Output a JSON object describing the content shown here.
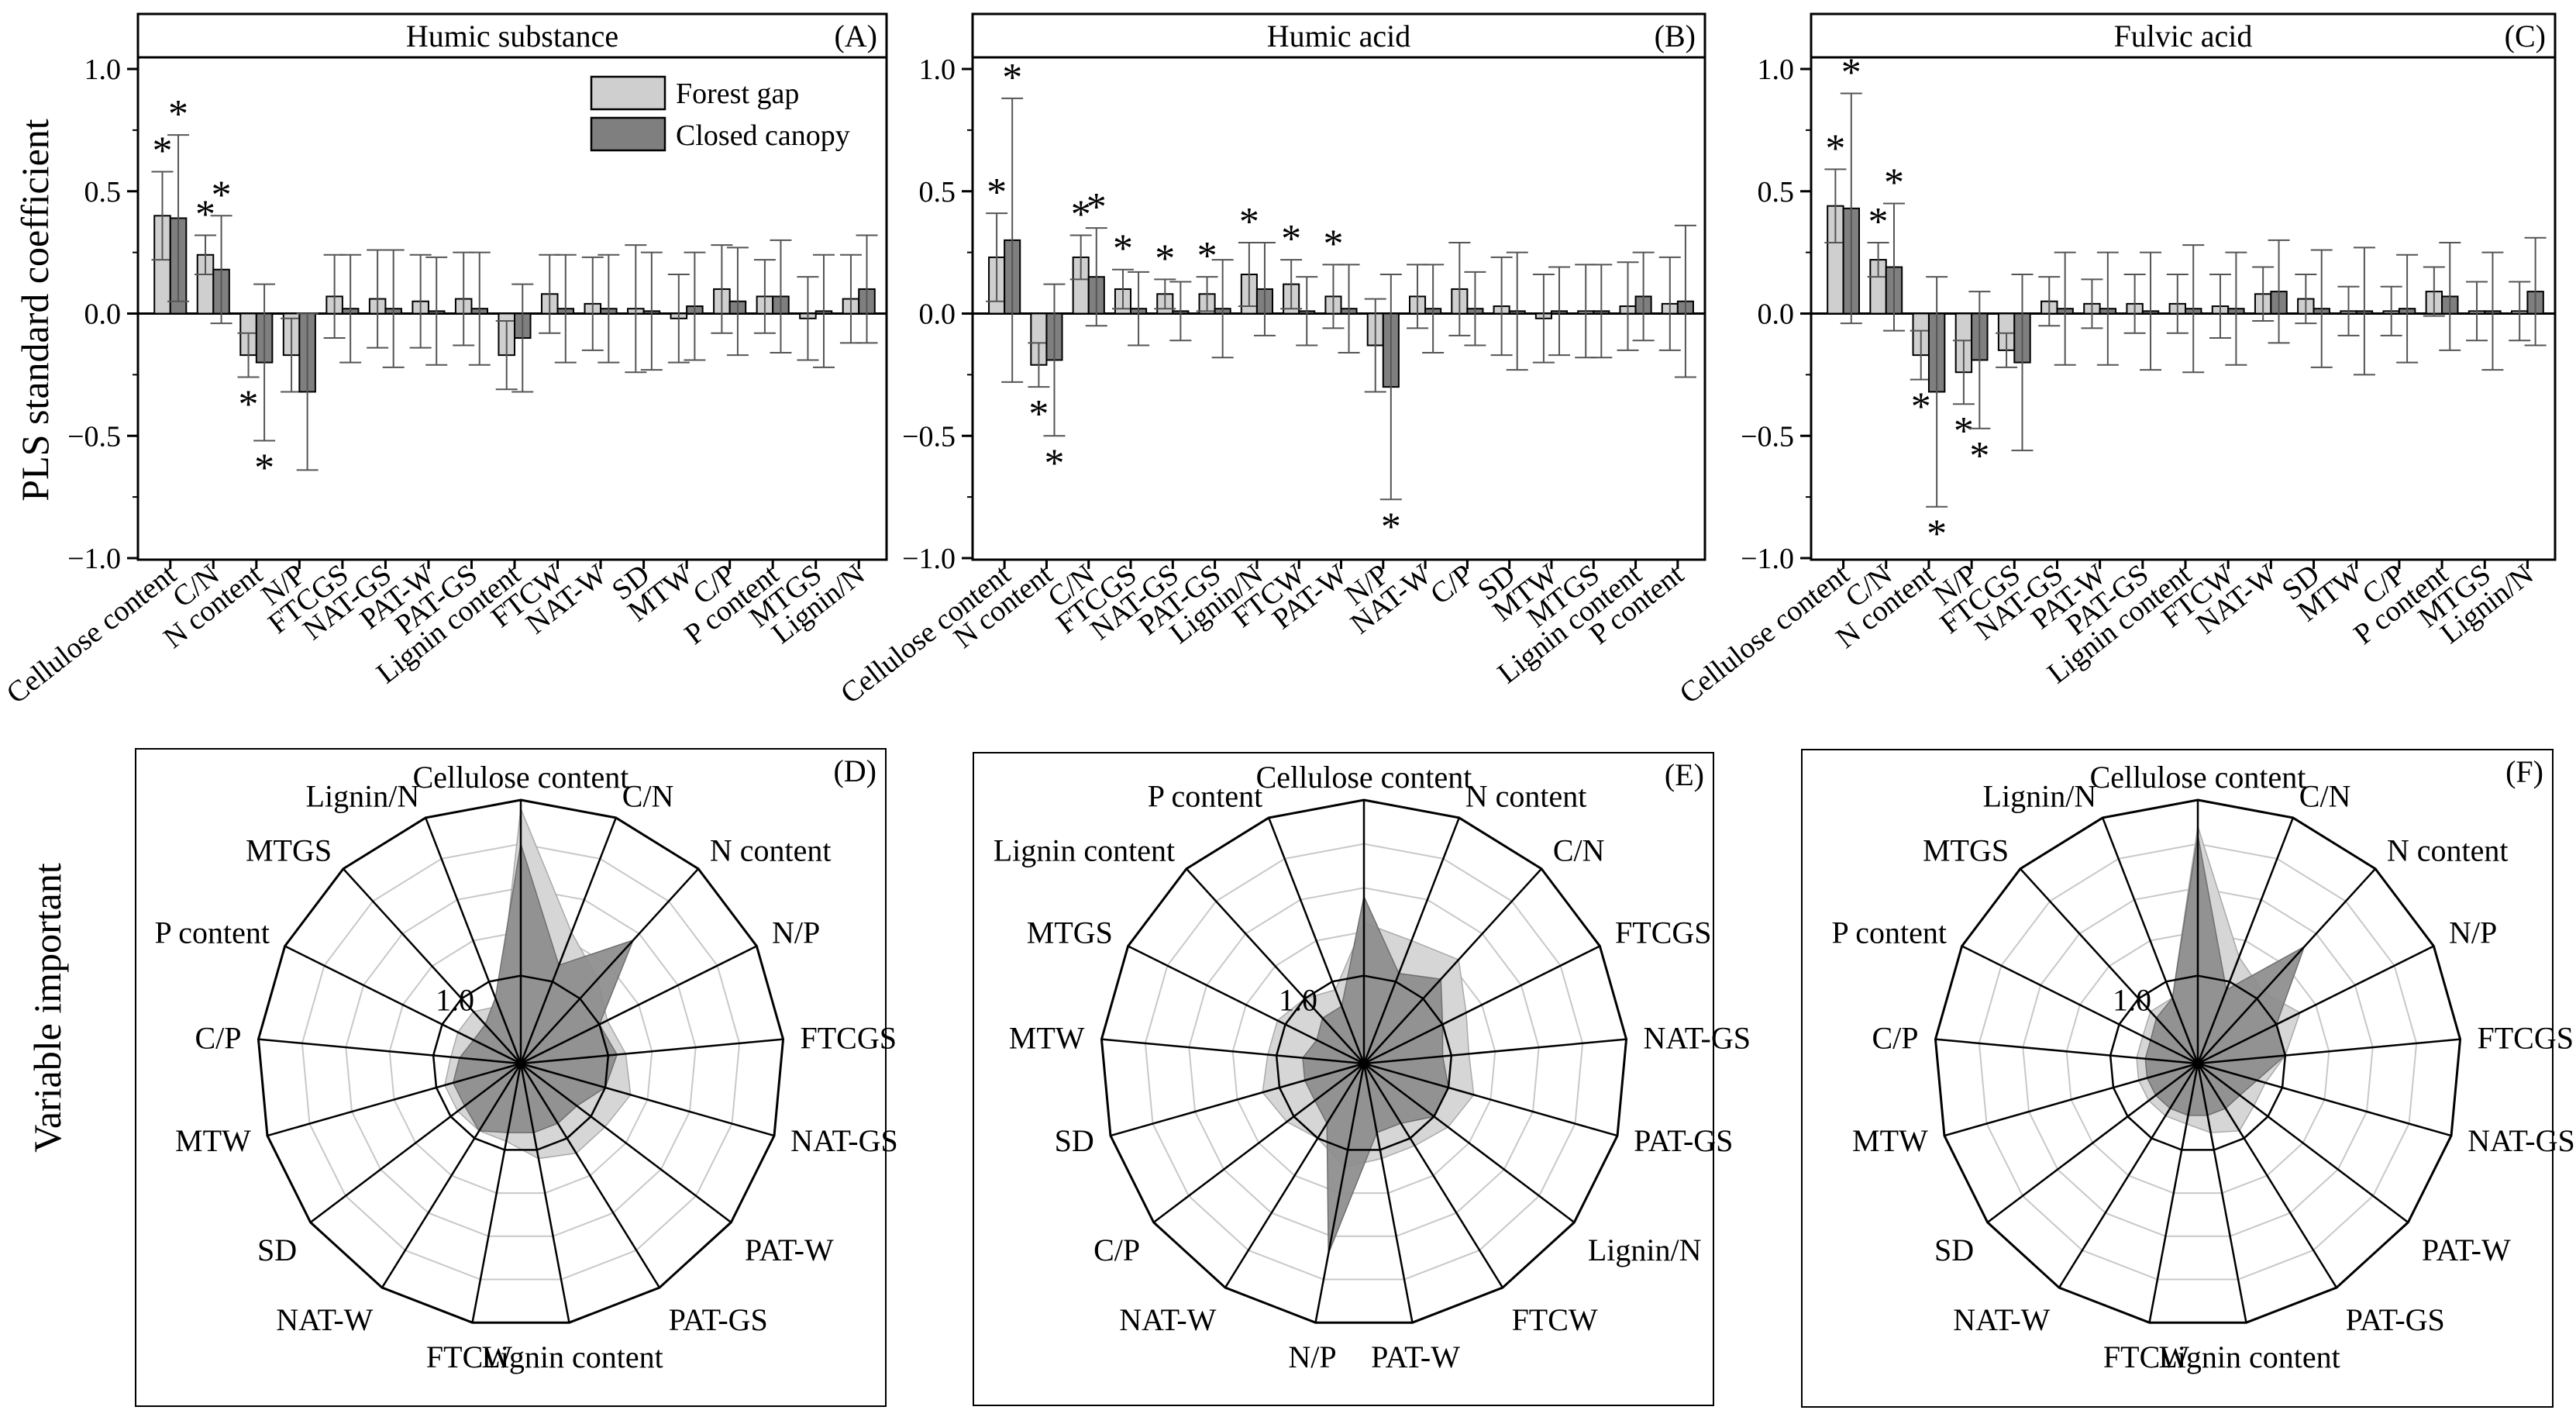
{
  "figure": {
    "y_label": "PLS standard coefficient",
    "y_label_bottom": "Variable important",
    "legend": [
      {
        "label": "Forest gap",
        "color": "#cfcfcf"
      },
      {
        "label": "Closed canopy",
        "color": "#7f7f7f"
      }
    ],
    "radar_ring_label": "1.0",
    "colors": {
      "forest_gap": "#cfcfcf",
      "closed_canopy": "#7f7f7f",
      "radar_forest": "#d6d6d6",
      "radar_closed": "#8c8c8c",
      "grid": "#c8c8c8"
    }
  },
  "chart_data": [
    {
      "type": "bar",
      "panel": "(A)",
      "title": "Humic substance",
      "ylabel": "PLS standard coefficient",
      "ylim": [
        -1.0,
        1.0
      ],
      "yticks": [
        "1.0",
        "0.5",
        "0.0",
        "−0.5",
        "−1.0"
      ],
      "ytick_values": [
        1.0,
        0.5,
        0.0,
        -0.5,
        -1.0
      ],
      "categories": [
        "Cellulose content",
        "C/N",
        "N content",
        "N/P",
        "FTCGS",
        "NAT-GS",
        "PAT-W",
        "PAT-GS",
        "Lignin content",
        "FTCW",
        "NAT-W",
        "SD",
        "MTW",
        "C/P",
        "P content",
        "MTGS",
        "Lignin/N"
      ],
      "series": [
        {
          "name": "Forest gap",
          "values": [
            0.4,
            0.24,
            -0.17,
            -0.17,
            0.07,
            0.06,
            0.05,
            0.06,
            -0.17,
            0.08,
            0.04,
            0.02,
            -0.02,
            0.1,
            0.07,
            -0.02,
            0.06
          ],
          "err": [
            0.18,
            0.08,
            0.09,
            0.15,
            0.17,
            0.2,
            0.19,
            0.19,
            0.14,
            0.16,
            0.19,
            0.26,
            0.18,
            0.18,
            0.15,
            0.17,
            0.18
          ],
          "stars": [
            1,
            1,
            1,
            0,
            0,
            0,
            0,
            0,
            0,
            0,
            0,
            0,
            0,
            0,
            0,
            0,
            0
          ]
        },
        {
          "name": "Closed canopy",
          "values": [
            0.39,
            0.18,
            -0.2,
            -0.32,
            0.02,
            0.02,
            0.01,
            0.02,
            -0.1,
            0.02,
            0.02,
            0.01,
            0.03,
            0.05,
            0.07,
            0.01,
            0.1
          ],
          "err": [
            0.34,
            0.22,
            0.32,
            0.32,
            0.22,
            0.24,
            0.22,
            0.23,
            0.22,
            0.22,
            0.22,
            0.24,
            0.22,
            0.22,
            0.23,
            0.23,
            0.22
          ],
          "stars": [
            1,
            1,
            1,
            0,
            0,
            0,
            0,
            0,
            0,
            0,
            0,
            0,
            0,
            0,
            0,
            0,
            0
          ]
        }
      ]
    },
    {
      "type": "bar",
      "panel": "(B)",
      "title": "Humic acid",
      "ylim": [
        -1.0,
        1.0
      ],
      "yticks": [
        "1.0",
        "0.5",
        "0.0",
        "−0.5",
        "−1.0"
      ],
      "ytick_values": [
        1.0,
        0.5,
        0.0,
        -0.5,
        -1.0
      ],
      "categories": [
        "Cellulose content",
        "N content",
        "C/N",
        "FTCGS",
        "NAT-GS",
        "PAT-GS",
        "Lignin/N",
        "FTCW",
        "PAT-W",
        "N/P",
        "NAT-W",
        "C/P",
        "SD",
        "MTW",
        "MTGS",
        "Lignin content",
        "P content"
      ],
      "series": [
        {
          "name": "Forest gap",
          "values": [
            0.23,
            -0.21,
            0.23,
            0.1,
            0.08,
            0.08,
            0.16,
            0.12,
            0.07,
            -0.13,
            0.07,
            0.1,
            0.03,
            -0.02,
            0.01,
            0.03,
            0.04
          ],
          "err": [
            0.18,
            0.09,
            0.09,
            0.08,
            0.06,
            0.07,
            0.13,
            0.1,
            0.13,
            0.19,
            0.13,
            0.19,
            0.2,
            0.18,
            0.19,
            0.18,
            0.19
          ],
          "stars": [
            1,
            1,
            1,
            1,
            1,
            1,
            1,
            1,
            1,
            0,
            0,
            0,
            0,
            0,
            0,
            0,
            0
          ]
        },
        {
          "name": "Closed canopy",
          "values": [
            0.3,
            -0.19,
            0.15,
            0.02,
            0.01,
            0.02,
            0.1,
            0.01,
            0.02,
            -0.3,
            0.02,
            0.02,
            0.01,
            0.01,
            0.01,
            0.07,
            0.05
          ],
          "err": [
            0.58,
            0.31,
            0.2,
            0.15,
            0.12,
            0.2,
            0.19,
            0.14,
            0.18,
            0.46,
            0.18,
            0.15,
            0.24,
            0.18,
            0.19,
            0.18,
            0.31
          ],
          "stars": [
            1,
            1,
            1,
            0,
            0,
            0,
            0,
            0,
            0,
            1,
            0,
            0,
            0,
            0,
            0,
            0,
            0
          ]
        }
      ]
    },
    {
      "type": "bar",
      "panel": "(C)",
      "title": "Fulvic acid",
      "ylim": [
        -1.0,
        1.0
      ],
      "yticks": [
        "1.0",
        "0.5",
        "0.0",
        "−0.5",
        "−1.0"
      ],
      "ytick_values": [
        1.0,
        0.5,
        0.0,
        -0.5,
        -1.0
      ],
      "categories": [
        "Cellulose content",
        "C/N",
        "N content",
        "N/P",
        "FTCGS",
        "NAT-GS",
        "PAT-W",
        "PAT-GS",
        "Lignin content",
        "FTCW",
        "NAT-W",
        "SD",
        "MTW",
        "C/P",
        "P content",
        "MTGS",
        "Lignin/N"
      ],
      "series": [
        {
          "name": "Forest gap",
          "values": [
            0.44,
            0.22,
            -0.17,
            -0.24,
            -0.15,
            0.05,
            0.04,
            0.04,
            0.04,
            0.03,
            0.08,
            0.06,
            0.01,
            0.01,
            0.09,
            0.01,
            0.01
          ],
          "err": [
            0.15,
            0.07,
            0.1,
            0.13,
            0.07,
            0.1,
            0.1,
            0.12,
            0.12,
            0.13,
            0.11,
            0.1,
            0.1,
            0.1,
            0.1,
            0.12,
            0.12
          ],
          "stars": [
            1,
            1,
            1,
            1,
            0,
            0,
            0,
            0,
            0,
            0,
            0,
            0,
            0,
            0,
            0,
            0,
            0
          ]
        },
        {
          "name": "Closed canopy",
          "values": [
            0.43,
            0.19,
            -0.32,
            -0.19,
            -0.2,
            0.02,
            0.02,
            0.01,
            0.02,
            0.02,
            0.09,
            0.02,
            0.01,
            0.02,
            0.07,
            0.01,
            0.09
          ],
          "err": [
            0.47,
            0.26,
            0.47,
            0.28,
            0.36,
            0.23,
            0.23,
            0.24,
            0.26,
            0.23,
            0.21,
            0.24,
            0.26,
            0.22,
            0.22,
            0.24,
            0.22
          ],
          "stars": [
            1,
            1,
            1,
            1,
            0,
            0,
            0,
            0,
            0,
            0,
            0,
            0,
            0,
            0,
            0,
            0,
            0
          ]
        }
      ]
    },
    {
      "type": "radar",
      "panel": "(D)",
      "ring_label": "1.0",
      "rmax": 3.0,
      "ring_values": [
        1.0,
        1.5,
        2.0,
        2.5,
        3.0
      ],
      "axes": [
        "Cellulose content",
        "C/N",
        "N content",
        "N/P",
        "FTCGS",
        "NAT-GS",
        "PAT-W",
        "PAT-GS",
        "Lignin content",
        "FTCW",
        "NAT-W",
        "SD",
        "MTW",
        "C/P",
        "P content",
        "MTGS",
        "Lignin/N"
      ],
      "series": [
        {
          "name": "Forest gap",
          "values": [
            2.9,
            1.6,
            1.3,
            1.1,
            1.2,
            1.3,
            1.2,
            1.2,
            1.1,
            0.9,
            0.9,
            0.9,
            0.9,
            0.8,
            0.8,
            0.8,
            0.7
          ]
        },
        {
          "name": "Closed canopy",
          "values": [
            2.5,
            1.2,
            1.9,
            1.0,
            1.1,
            1.0,
            0.8,
            0.8,
            0.8,
            0.8,
            0.9,
            0.8,
            0.8,
            0.7,
            0.6,
            0.6,
            0.8
          ]
        }
      ]
    },
    {
      "type": "radar",
      "panel": "(E)",
      "ring_label": "1.0",
      "rmax": 3.0,
      "ring_values": [
        1.0,
        1.5,
        2.0,
        2.5,
        3.0
      ],
      "axes": [
        "Cellulose content",
        "N content",
        "C/N",
        "FTCGS",
        "NAT-GS",
        "PAT-GS",
        "Lignin/N",
        "FTCW",
        "PAT-W",
        "N/P",
        "NAT-W",
        "C/P",
        "SD",
        "MTW",
        "MTGS",
        "Lignin content",
        "P content"
      ],
      "series": [
        {
          "name": "Forest gap",
          "values": [
            1.6,
            1.5,
            1.6,
            1.3,
            1.2,
            1.3,
            1.2,
            1.1,
            1.1,
            1.2,
            1.0,
            1.1,
            1.2,
            1.1,
            1.1,
            1.0,
            0.9
          ]
        },
        {
          "name": "Closed canopy",
          "values": [
            1.9,
            1.1,
            1.3,
            1.0,
            0.9,
            1.0,
            1.0,
            0.8,
            0.8,
            2.2,
            0.8,
            0.7,
            0.7,
            0.7,
            0.6,
            0.7,
            0.7
          ]
        }
      ]
    },
    {
      "type": "radar",
      "panel": "(F)",
      "ring_label": "1.0",
      "rmax": 3.0,
      "ring_values": [
        1.0,
        1.5,
        2.0,
        2.5,
        3.0
      ],
      "axes": [
        "Cellulose content",
        "C/N",
        "N content",
        "N/P",
        "FTCGS",
        "NAT-GS",
        "PAT-W",
        "PAT-GS",
        "Lignin content",
        "FTCW",
        "NAT-W",
        "SD",
        "MTW",
        "C/P",
        "P content",
        "MTGS",
        "Lignin/N"
      ],
      "series": [
        {
          "name": "Forest gap",
          "values": [
            2.7,
            1.3,
            1.1,
            1.3,
            1.0,
            0.8,
            0.8,
            0.9,
            0.8,
            0.7,
            0.7,
            0.7,
            0.7,
            0.7,
            0.7,
            0.8,
            0.8
          ]
        },
        {
          "name": "Closed canopy",
          "values": [
            2.6,
            0.9,
            1.8,
            1.0,
            1.0,
            0.7,
            0.6,
            0.6,
            0.6,
            0.6,
            0.6,
            0.6,
            0.6,
            0.6,
            0.6,
            0.7,
            0.8
          ]
        }
      ]
    }
  ]
}
